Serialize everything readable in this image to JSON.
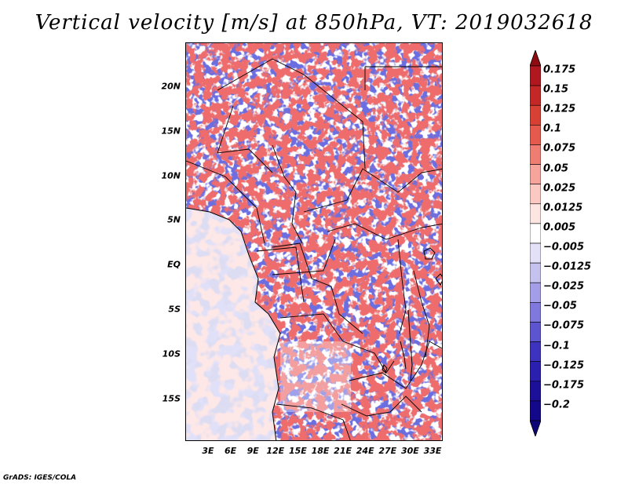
{
  "title": "Vertical velocity [m/s] at 850hPa, VT: 2019032618",
  "credit": "GrADS: IGES/COLA",
  "map": {
    "lat_labels": [
      "20N",
      "15N",
      "10N",
      "5N",
      "EQ",
      "5S",
      "10S",
      "15S"
    ],
    "lon_labels": [
      "3E",
      "6E",
      "9E",
      "12E",
      "15E",
      "18E",
      "21E",
      "24E",
      "27E",
      "30E",
      "33E"
    ],
    "field": "vertical-velocity-850hPa",
    "land_color": "#6b6ee0",
    "ocean_color": "#dcdcf2"
  },
  "colorbar": {
    "levels": [
      "0.175",
      "0.15",
      "0.125",
      "0.1",
      "0.075",
      "0.05",
      "0.025",
      "0.0125",
      "0.005",
      "−0.005",
      "−0.0125",
      "−0.025",
      "−0.05",
      "−0.075",
      "−0.1",
      "−0.125",
      "−0.175",
      "−0.2"
    ],
    "colors": [
      "#8c0c10",
      "#b0171f",
      "#c42826",
      "#d94034",
      "#e55a4c",
      "#ef7d72",
      "#f6a49c",
      "#fbc8c2",
      "#fde6e2",
      "#ffffff",
      "#e3e1f7",
      "#c6c2f0",
      "#a49de8",
      "#8178de",
      "#5d55d0",
      "#3d33bf",
      "#2a1fae",
      "#1c0f98",
      "#14088a",
      "#0e0578"
    ]
  }
}
